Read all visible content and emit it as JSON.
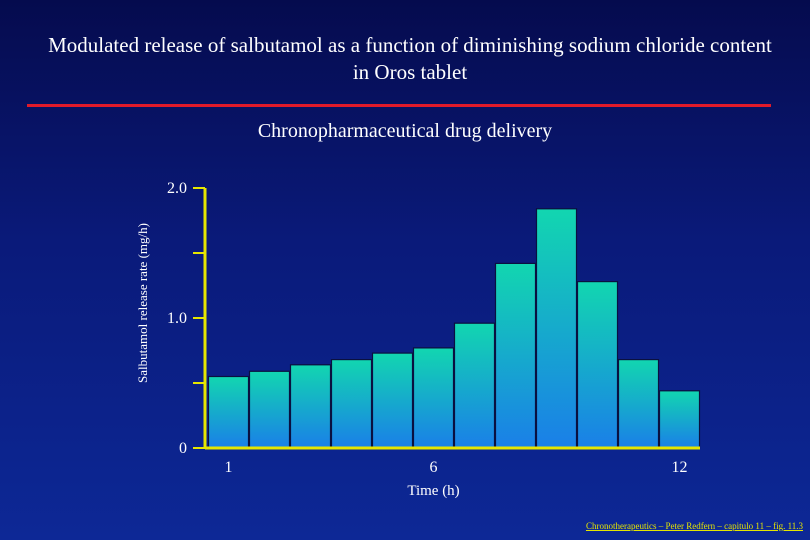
{
  "slide": {
    "title": "Modulated release of salbutamol as a function of diminishing sodium chloride content in Oros tablet",
    "subtitle": "Chronopharmaceutical drug delivery",
    "footer": "Chronotherapeutics – Peter Redfern – capitulo 11 – fig. 11.3"
  },
  "colors": {
    "axis": "#e6e600",
    "bar_top": "#12d6b0",
    "bar_bottom": "#1a7fe8",
    "bar_stroke": "#0a1040",
    "rule": "#e01a2a"
  },
  "chart_data": {
    "type": "bar",
    "title": "Chronopharmaceutical drug delivery",
    "xlabel": "Time (h)",
    "ylabel": "Salbutamol release rate (mg/h)",
    "x": [
      1,
      2,
      3,
      4,
      5,
      6,
      7,
      8,
      9,
      10,
      11,
      12
    ],
    "values": [
      0.55,
      0.59,
      0.64,
      0.68,
      0.73,
      0.77,
      0.96,
      1.42,
      1.84,
      1.28,
      0.68,
      0.44
    ],
    "ylim": [
      0,
      2.0
    ],
    "y_ticks": [
      {
        "value": 0,
        "label": "0"
      },
      {
        "value": 0.5,
        "label": ""
      },
      {
        "value": 1.0,
        "label": "1.0"
      },
      {
        "value": 1.5,
        "label": ""
      },
      {
        "value": 2.0,
        "label": "2.0"
      }
    ],
    "x_tick_labels": [
      {
        "x": 1,
        "label": "1"
      },
      {
        "x": 6,
        "label": "6"
      },
      {
        "x": 12,
        "label": "12"
      }
    ],
    "grid": false,
    "legend": "none"
  }
}
